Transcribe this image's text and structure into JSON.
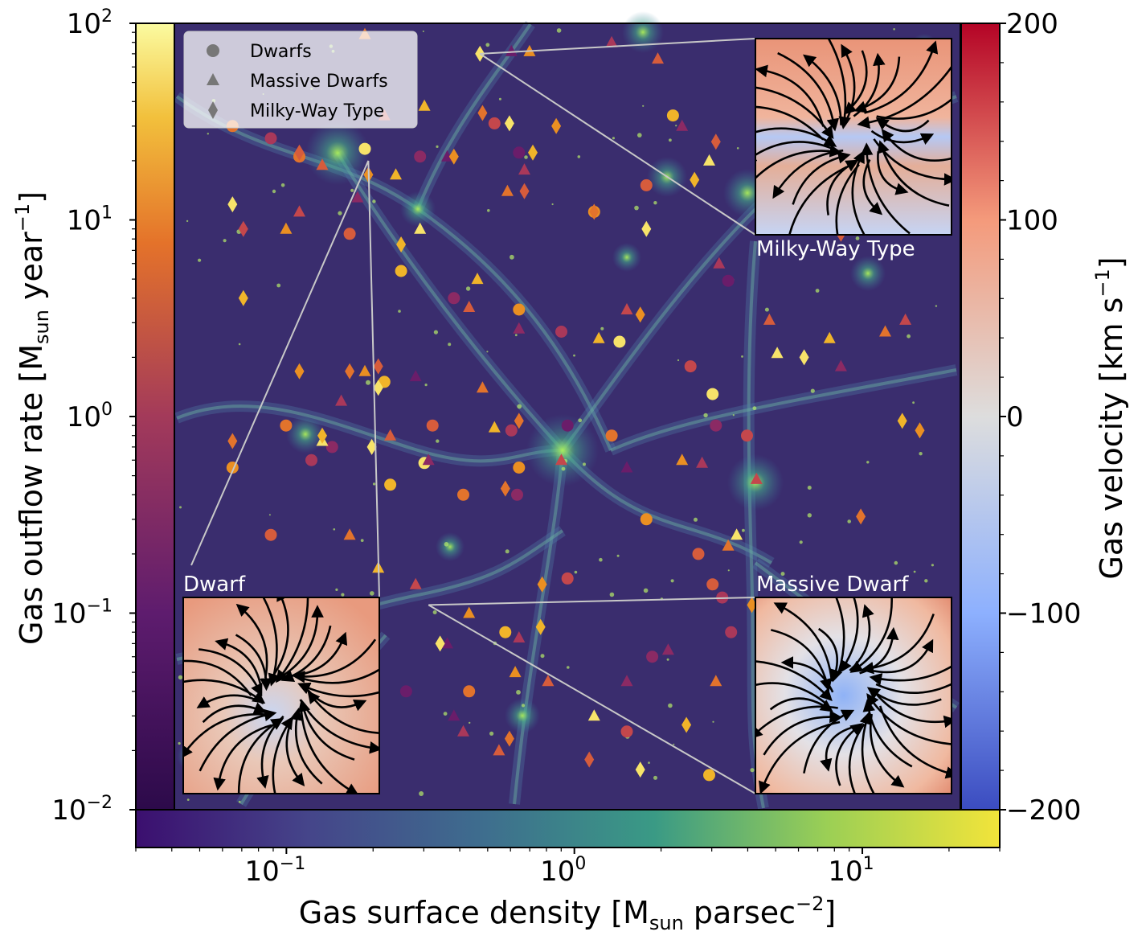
{
  "chart_data": {
    "type": "scatter",
    "background": "gas surface density map",
    "xlabel_main": "Gas surface density [M",
    "xlabel_sub": "sun",
    "xlabel_mid": " parsec",
    "xlabel_sup": "−2",
    "xlabel_end": "]",
    "xscale": "log",
    "xlim": [
      0.03,
      30
    ],
    "xticks": [
      {
        "value": 0.1,
        "base": "10",
        "exp": "−1"
      },
      {
        "value": 1,
        "base": "10",
        "exp": "0"
      },
      {
        "value": 10,
        "base": "10",
        "exp": "1"
      }
    ],
    "ylabel_main": "Gas outflow rate [M",
    "ylabel_sub": "sun",
    "ylabel_mid": " year",
    "ylabel_sup": "−1",
    "ylabel_end": "]",
    "yscale": "log",
    "ylim": [
      0.01,
      100
    ],
    "yticks": [
      {
        "value": 0.01,
        "base": "10",
        "exp": "−2"
      },
      {
        "value": 0.1,
        "base": "10",
        "exp": "−1"
      },
      {
        "value": 1,
        "base": "10",
        "exp": "0"
      },
      {
        "value": 10,
        "base": "10",
        "exp": "1"
      },
      {
        "value": 100,
        "base": "10",
        "exp": "2"
      }
    ],
    "velocity_colorbar": {
      "label_main": "Gas velocity [km s",
      "label_sup": "−1",
      "label_end": "]",
      "range": [
        -200,
        200
      ],
      "ticks": [
        "200",
        "100",
        "0",
        "−100",
        "−200"
      ],
      "tick_values": [
        200,
        100,
        0,
        -100,
        -200
      ]
    },
    "legend": {
      "placement": "top-left",
      "entries": [
        {
          "label": "Dwarfs",
          "marker": "circle"
        },
        {
          "label": "Massive Dwarfs",
          "marker": "triangle"
        },
        {
          "label": "Milky-Way Type",
          "marker": "diamond"
        }
      ]
    },
    "insets": [
      {
        "label": "Dwarf",
        "position": "bottom-left",
        "source": {
          "x": 0.165,
          "y": 20
        }
      },
      {
        "label": "Massive Dwarf",
        "position": "bottom-right",
        "source": {
          "x": 0.28,
          "y": 0.11
        }
      },
      {
        "label": "Milky-Way Type",
        "position": "top-right",
        "source": {
          "x": 0.44,
          "y": 70
        }
      }
    ],
    "series": [
      {
        "name": "Dwarfs",
        "marker": "circle",
        "points": [
          [
            0.09,
            21
          ],
          [
            0.16,
            23
          ],
          [
            0.26,
            21
          ],
          [
            0.5,
            31
          ],
          [
            0.62,
            22
          ],
          [
            1.2,
            11
          ],
          [
            1.9,
            15
          ],
          [
            2.4,
            34
          ],
          [
            0.07,
            26
          ],
          [
            0.05,
            30
          ],
          [
            0.14,
            8.5
          ],
          [
            0.22,
            5.5
          ],
          [
            0.35,
            4.0
          ],
          [
            0.62,
            3.5
          ],
          [
            0.9,
            2.7
          ],
          [
            1.5,
            2.4
          ],
          [
            3.9,
            4.9
          ],
          [
            2.8,
            1.8
          ],
          [
            0.08,
            0.9
          ],
          [
            0.12,
            0.7
          ],
          [
            0.19,
            1.5
          ],
          [
            0.29,
            0.9
          ],
          [
            0.58,
            0.85
          ],
          [
            0.62,
            0.55
          ],
          [
            0.95,
            0.9
          ],
          [
            1.4,
            0.8
          ],
          [
            3.5,
            0.9
          ],
          [
            3.4,
            1.3
          ],
          [
            4.6,
            0.8
          ],
          [
            0.05,
            0.55
          ],
          [
            0.07,
            0.25
          ],
          [
            0.1,
            0.6
          ],
          [
            0.2,
            0.45
          ],
          [
            0.38,
            0.4
          ],
          [
            0.61,
            0.4
          ],
          [
            0.95,
            0.15
          ],
          [
            1.9,
            0.3
          ],
          [
            3.0,
            0.2
          ],
          [
            3.7,
            0.12
          ],
          [
            0.27,
            0.58
          ],
          [
            0.23,
            0.04
          ],
          [
            0.4,
            0.04
          ],
          [
            0.55,
            0.08
          ],
          [
            2.0,
            0.06
          ],
          [
            3.4,
            0.14
          ],
          [
            6.5,
            0.05
          ],
          [
            4.0,
            0.08
          ],
          [
            0.13,
            0.035
          ],
          [
            1.6,
            0.025
          ],
          [
            3.3,
            0.015
          ]
        ],
        "color_values": [
          6,
          9,
          2,
          4,
          1,
          7,
          5,
          8,
          3,
          6,
          5,
          8,
          2,
          7,
          3,
          9,
          1,
          4,
          6,
          2,
          8,
          5,
          3,
          7,
          1,
          6,
          2,
          9,
          4,
          7,
          5,
          3,
          8,
          6,
          2,
          4,
          7,
          5,
          3,
          9,
          1,
          6,
          8,
          2,
          5,
          7,
          3,
          6,
          4,
          8
        ]
      },
      {
        "name": "Massive Dwarfs",
        "marker": "triangle",
        "points": [
          [
            0.11,
            19
          ],
          [
            0.15,
            13
          ],
          [
            0.21,
            17
          ],
          [
            0.09,
            11
          ],
          [
            0.08,
            9
          ],
          [
            0.33,
            21
          ],
          [
            0.56,
            14
          ],
          [
            0.65,
            18
          ],
          [
            0.26,
            9
          ],
          [
            0.4,
            3.6
          ],
          [
            0.62,
            2.8
          ],
          [
            1.25,
            2.5
          ],
          [
            1.6,
            3.5
          ],
          [
            0.45,
            1.4
          ],
          [
            0.25,
            1.6
          ],
          [
            0.16,
            1.7
          ],
          [
            0.13,
            1.2
          ],
          [
            0.11,
            0.75
          ],
          [
            0.2,
            0.8
          ],
          [
            0.28,
            0.6
          ],
          [
            0.14,
            0.25
          ],
          [
            0.18,
            0.17
          ],
          [
            0.25,
            0.14
          ],
          [
            0.33,
            0.07
          ],
          [
            0.4,
            0.1
          ],
          [
            0.62,
            0.075
          ],
          [
            0.8,
            0.045
          ],
          [
            1.2,
            0.03
          ],
          [
            2.3,
            0.065
          ],
          [
            3.5,
            0.045
          ],
          [
            0.5,
            0.88
          ],
          [
            0.9,
            0.6
          ],
          [
            1.6,
            0.55
          ],
          [
            2.6,
            0.6
          ],
          [
            3.1,
            0.58
          ],
          [
            5.6,
            3.1
          ],
          [
            6.0,
            2.1
          ],
          [
            10.5,
            1.8
          ],
          [
            15.5,
            2.7
          ],
          [
            18.5,
            3.1
          ],
          [
            0.27,
            38
          ],
          [
            0.58,
            72
          ],
          [
            0.68,
            72
          ],
          [
            1.4,
            80
          ],
          [
            2.1,
            66
          ],
          [
            2.6,
            30
          ],
          [
            3.3,
            20
          ],
          [
            0.16,
            88
          ],
          [
            0.19,
            34
          ],
          [
            0.43,
            5.0
          ],
          [
            0.35,
            0.03
          ],
          [
            0.6,
            0.05
          ],
          [
            0.38,
            0.025
          ],
          [
            0.52,
            0.02
          ],
          [
            1.6,
            0.045
          ],
          [
            3.9,
            0.22
          ],
          [
            4.2,
            0.25
          ],
          [
            5.0,
            0.48
          ],
          [
            9.5,
            2.5
          ],
          [
            3.6,
            6.0
          ]
        ],
        "color_values": [
          5,
          2,
          8,
          4,
          7,
          1,
          6,
          3,
          9,
          5,
          2,
          8,
          4,
          6,
          1,
          7,
          3,
          9,
          5,
          2,
          6,
          8,
          4,
          1,
          7,
          3,
          5,
          9,
          2,
          6,
          8,
          4,
          1,
          7,
          3,
          5,
          9,
          2,
          6,
          4,
          8,
          1,
          7,
          3,
          5,
          2,
          9,
          6,
          4,
          8,
          1,
          7,
          3,
          5,
          2,
          6,
          9,
          4,
          8,
          3
        ]
      },
      {
        "name": "Milky-Way Type",
        "marker": "diamond",
        "points": [
          [
            0.44,
            70
          ],
          [
            0.165,
            17
          ],
          [
            0.11,
            0.8
          ],
          [
            0.05,
            0.75
          ],
          [
            0.09,
            22
          ],
          [
            0.05,
            12
          ],
          [
            0.055,
            9
          ],
          [
            0.055,
            4.0
          ],
          [
            0.09,
            1.7
          ],
          [
            0.14,
            1.7
          ],
          [
            0.18,
            1.8
          ],
          [
            0.18,
            1.4
          ],
          [
            0.22,
            7.5
          ],
          [
            0.35,
            21
          ],
          [
            0.45,
            35
          ],
          [
            0.57,
            31
          ],
          [
            0.65,
            14
          ],
          [
            0.7,
            22
          ],
          [
            0.86,
            30
          ],
          [
            1.2,
            11
          ],
          [
            1.9,
            9
          ],
          [
            2.9,
            16
          ],
          [
            3.5,
            25
          ],
          [
            1.8,
            3.3
          ],
          [
            0.55,
            0.43
          ],
          [
            0.31,
            0.07
          ],
          [
            0.75,
            0.085
          ],
          [
            0.76,
            0.14
          ],
          [
            0.57,
            0.023
          ],
          [
            1.15,
            0.018
          ],
          [
            1.8,
            0.016
          ],
          [
            2.7,
            0.027
          ],
          [
            4.8,
            0.11
          ],
          [
            7.6,
            2.0
          ],
          [
            12.5,
            0.31
          ],
          [
            18,
            0.95
          ],
          [
            21,
            0.85
          ],
          [
            10.5,
            8.5
          ],
          [
            0.17,
            0.7
          ],
          [
            0.62,
            0.95
          ]
        ],
        "color_values": [
          9,
          7,
          8,
          6,
          5,
          9,
          4,
          8,
          7,
          6,
          5,
          9,
          8,
          7,
          6,
          9,
          5,
          8,
          7,
          6,
          9,
          8,
          5,
          7,
          6,
          9,
          8,
          7,
          6,
          5,
          9,
          8,
          7,
          9,
          6,
          8,
          7,
          5,
          9,
          6
        ]
      }
    ]
  }
}
